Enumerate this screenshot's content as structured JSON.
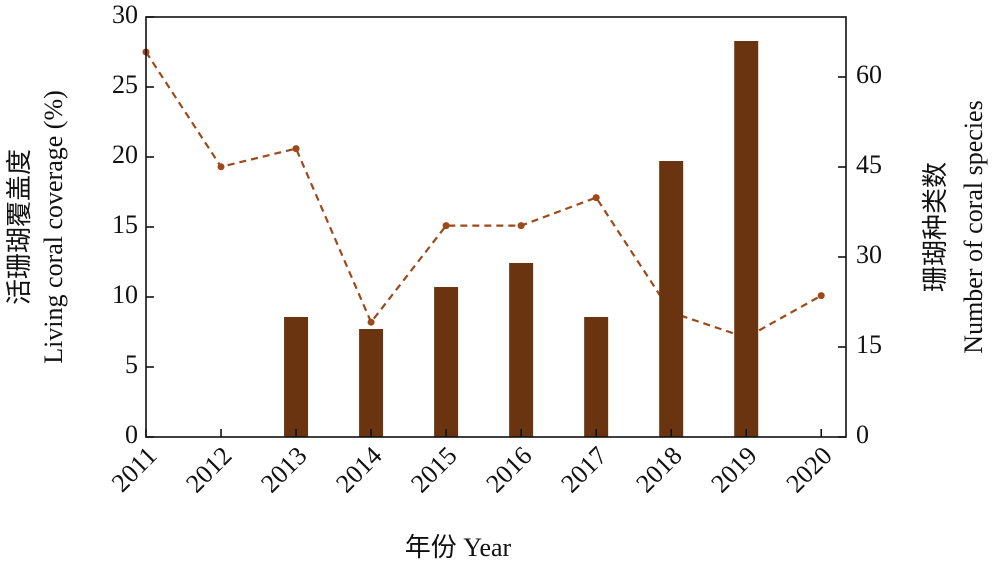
{
  "chart_data": {
    "type": "bar",
    "x": [
      2011,
      2012,
      2013,
      2014,
      2015,
      2016,
      2017,
      2018,
      2019,
      2020
    ],
    "xlim": [
      2011,
      2020.33
    ],
    "xticks": [
      2011,
      2012,
      2013,
      2014,
      2015,
      2016,
      2017,
      2018,
      2019,
      2020
    ],
    "x_label": "年份 Year",
    "y_label": [
      "活珊瑚覆盖度",
      "Living coral coverage (%)"
    ],
    "y2_label": [
      "珊瑚种类数",
      "Number of coral species"
    ],
    "ylim": [
      0,
      30
    ],
    "yticks": [
      0,
      5,
      10,
      15,
      20,
      25,
      30
    ],
    "y2lim": [
      0,
      70
    ],
    "y2ticks": [
      0,
      15,
      30,
      45,
      60
    ],
    "series": [
      {
        "type": "bar",
        "axis": "y2",
        "color": "#6b3410",
        "values": [
          null,
          null,
          20,
          18,
          25,
          29,
          20,
          46,
          66,
          null
        ]
      },
      {
        "type": "line",
        "color": "#9c4a1a",
        "values": [
          27.5,
          19.3,
          20.6,
          8.2,
          15.1,
          15.1,
          17.1,
          8.9,
          7.1,
          10.1
        ]
      }
    ]
  }
}
